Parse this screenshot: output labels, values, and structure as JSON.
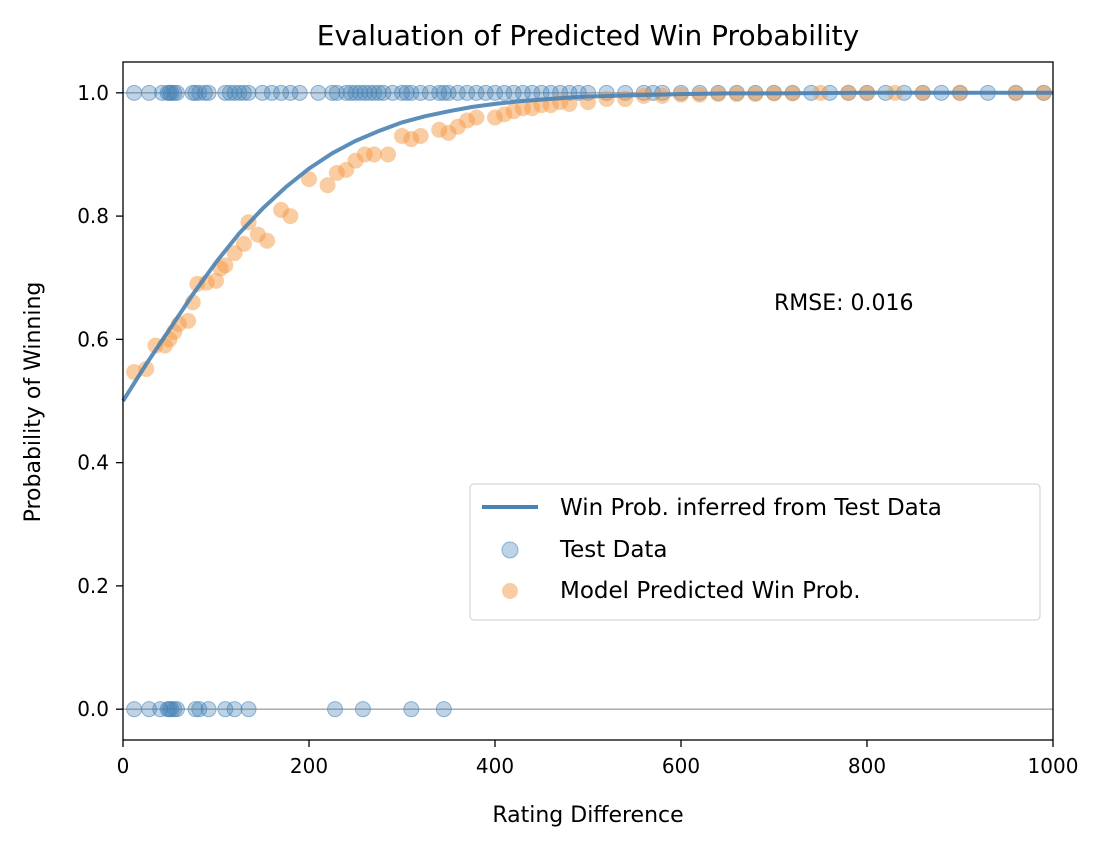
{
  "chart_data": {
    "type": "scatter",
    "title": "Evaluation of Predicted Win Probability",
    "xlabel": "Rating Difference",
    "ylabel": "Probability of Winning",
    "xlim": [
      0,
      1000
    ],
    "ylim": [
      -0.05,
      1.05
    ],
    "xticks": [
      "0",
      "200",
      "400",
      "600",
      "800",
      "1000"
    ],
    "yticks": [
      "0.0",
      "0.2",
      "0.4",
      "0.6",
      "0.8",
      "1.0"
    ],
    "xtick_values": [
      0,
      200,
      400,
      600,
      800,
      1000
    ],
    "ytick_values": [
      0.0,
      0.2,
      0.4,
      0.6,
      0.8,
      1.0
    ],
    "grid": false,
    "reference_lines_y": [
      0.0,
      1.0
    ],
    "annotation": "RMSE: 0.016",
    "legend_position": "lower-right",
    "colors": {
      "curve": "#4a82b4",
      "test": "#4682b4",
      "model": "#f59a45"
    },
    "series": [
      {
        "name": "Win Prob. inferred from Test Data",
        "kind": "line",
        "x": [
          0,
          25,
          50,
          75,
          100,
          125,
          150,
          175,
          200,
          225,
          250,
          275,
          300,
          325,
          350,
          375,
          400,
          425,
          450,
          475,
          500,
          550,
          600,
          650,
          700,
          800,
          900,
          1000
        ],
        "y": [
          0.5,
          0.56,
          0.616,
          0.673,
          0.725,
          0.772,
          0.812,
          0.847,
          0.877,
          0.902,
          0.922,
          0.938,
          0.952,
          0.962,
          0.97,
          0.977,
          0.982,
          0.986,
          0.989,
          0.992,
          0.994,
          0.996,
          0.998,
          0.999,
          0.999,
          1.0,
          1.0,
          1.0
        ]
      },
      {
        "name": "Test Data",
        "kind": "scatter",
        "x": [
          12,
          28,
          42,
          48,
          50,
          52,
          55,
          58,
          75,
          78,
          82,
          88,
          92,
          110,
          115,
          120,
          125,
          130,
          135,
          150,
          160,
          170,
          180,
          190,
          210,
          225,
          230,
          240,
          245,
          250,
          255,
          260,
          265,
          270,
          275,
          280,
          290,
          300,
          305,
          310,
          320,
          330,
          340,
          345,
          350,
          360,
          370,
          380,
          390,
          400,
          410,
          420,
          430,
          440,
          450,
          460,
          470,
          480,
          490,
          500,
          520,
          540,
          560,
          570,
          580,
          600,
          620,
          640,
          660,
          680,
          700,
          720,
          740,
          760,
          780,
          800,
          820,
          840,
          860,
          880,
          900,
          930,
          960,
          990,
          12,
          28,
          40,
          48,
          50,
          52,
          55,
          58,
          78,
          82,
          92,
          110,
          120,
          135,
          228,
          258,
          310,
          345
        ],
        "y": [
          1,
          1,
          1,
          1,
          1,
          1,
          1,
          1,
          1,
          1,
          1,
          1,
          1,
          1,
          1,
          1,
          1,
          1,
          1,
          1,
          1,
          1,
          1,
          1,
          1,
          1,
          1,
          1,
          1,
          1,
          1,
          1,
          1,
          1,
          1,
          1,
          1,
          1,
          1,
          1,
          1,
          1,
          1,
          1,
          1,
          1,
          1,
          1,
          1,
          1,
          1,
          1,
          1,
          1,
          1,
          1,
          1,
          1,
          1,
          1,
          1,
          1,
          1,
          1,
          1,
          1,
          1,
          1,
          1,
          1,
          1,
          1,
          1,
          1,
          1,
          1,
          1,
          1,
          1,
          1,
          1,
          1,
          1,
          1,
          0,
          0,
          0,
          0,
          0,
          0,
          0,
          0,
          0,
          0,
          0,
          0,
          0,
          0,
          0,
          0,
          0,
          0
        ]
      },
      {
        "name": "Model Predicted Win Prob.",
        "kind": "scatter",
        "x": [
          12,
          25,
          35,
          45,
          50,
          55,
          60,
          70,
          75,
          80,
          90,
          100,
          105,
          110,
          120,
          130,
          135,
          145,
          155,
          170,
          180,
          200,
          220,
          230,
          240,
          250,
          260,
          270,
          285,
          300,
          310,
          320,
          340,
          350,
          360,
          370,
          380,
          400,
          410,
          420,
          430,
          440,
          450,
          460,
          470,
          480,
          500,
          520,
          540,
          560,
          580,
          600,
          620,
          640,
          660,
          680,
          700,
          720,
          750,
          780,
          800,
          830,
          860,
          900,
          960,
          990
        ],
        "y": [
          0.547,
          0.552,
          0.59,
          0.59,
          0.6,
          0.612,
          0.625,
          0.63,
          0.66,
          0.69,
          0.692,
          0.695,
          0.715,
          0.72,
          0.74,
          0.755,
          0.79,
          0.77,
          0.76,
          0.81,
          0.8,
          0.86,
          0.85,
          0.87,
          0.875,
          0.89,
          0.9,
          0.9,
          0.9,
          0.93,
          0.925,
          0.93,
          0.94,
          0.935,
          0.945,
          0.955,
          0.96,
          0.96,
          0.965,
          0.97,
          0.975,
          0.975,
          0.98,
          0.98,
          0.985,
          0.982,
          0.985,
          0.99,
          0.99,
          0.995,
          0.995,
          0.997,
          0.997,
          0.998,
          0.998,
          0.998,
          0.999,
          0.999,
          1.0,
          1.0,
          1.0,
          1.0,
          1.0,
          1.0,
          1.0,
          1.0
        ]
      }
    ]
  }
}
